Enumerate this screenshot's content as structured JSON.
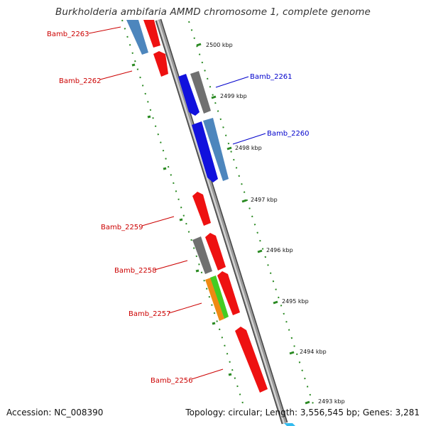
{
  "title": "Burkholderia ambifaria AMMD chromosome 1, complete genome",
  "footer": {
    "accession": "Accession: NC_008390",
    "summary": "Topology: circular; Length: 3,556,545 bp; Genes: 3,281"
  },
  "colors": {
    "forward_label": "#cc0000",
    "reverse_label": "#0000cc",
    "red": "#ee1111",
    "blue": "#1111dd",
    "steel": "#4d86bd",
    "gray": "#707070",
    "orange": "#ef8a12",
    "green": "#44cc22",
    "scale": "#2a8a22",
    "backbone": "#8a8a8a"
  },
  "genes": [
    {
      "name": "Bamb_2263",
      "color": "red"
    },
    {
      "name": "Bamb_2262",
      "color": "red"
    },
    {
      "name": "Bamb_2261",
      "color": "blue"
    },
    {
      "name": "Bamb_2260",
      "color": "blue"
    },
    {
      "name": "Bamb_2259",
      "color": "red"
    },
    {
      "name": "Bamb_2258",
      "color": "red"
    },
    {
      "name": "Bamb_2257",
      "color": "red"
    },
    {
      "name": "Bamb_2256",
      "color": "red"
    }
  ],
  "ticks": [
    "2500 kbp",
    "2499 kbp",
    "2498 kbp",
    "2497 kbp",
    "2496 kbp",
    "2495 kbp",
    "2494 kbp",
    "2493 kbp"
  ]
}
